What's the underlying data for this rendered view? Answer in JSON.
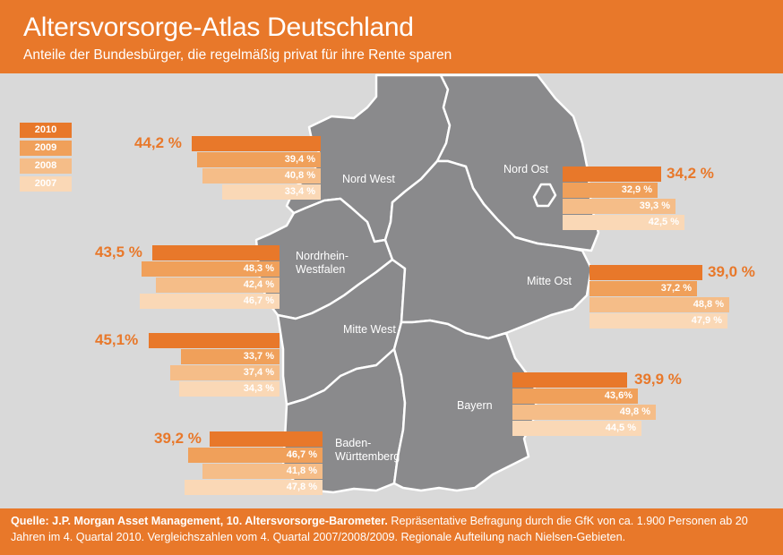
{
  "header": {
    "title": "Altersvorsorge-Atlas Deutschland",
    "subtitle": "Anteile der Bundesbürger, die regelmäßig privat für ihre Rente sparen"
  },
  "legend": [
    "2010",
    "2009",
    "2008",
    "2007"
  ],
  "colors": {
    "y2010": "#e8782a",
    "y2009": "#f0a05a",
    "y2008": "#f5bd88",
    "y2007": "#fad8b6",
    "map": "#8a8a8c",
    "border": "#ffffff",
    "background": "#d9d9d9"
  },
  "regions": [
    {
      "name": "Nord West",
      "values": {
        "2010": "44,2 %",
        "2009": "39,4 %",
        "2008": "40,8 %",
        "2007": "33,4 %"
      }
    },
    {
      "name": "Nordrhein-\nWestfalen",
      "values": {
        "2010": "43,5 %",
        "2009": "48,3 %",
        "2008": "42,4 %",
        "2007": "46,7 %"
      }
    },
    {
      "name": "Mitte West",
      "values": {
        "2010": "45,1%",
        "2009": "33,7 %",
        "2008": "37,4 %",
        "2007": "34,3 %"
      }
    },
    {
      "name": "Baden-\nWürttemberg",
      "values": {
        "2010": "39,2 %",
        "2009": "46,7 %",
        "2008": "41,8 %",
        "2007": "47,8 %"
      }
    },
    {
      "name": "Nord Ost",
      "values": {
        "2010": "34,2 %",
        "2009": "32,9 %",
        "2008": "39,3 %",
        "2007": "42,5 %"
      }
    },
    {
      "name": "Mitte Ost",
      "values": {
        "2010": "39,0 %",
        "2009": "37,2 %",
        "2008": "48,8 %",
        "2007": "47,9 %"
      }
    },
    {
      "name": "Bayern",
      "values": {
        "2010": "39,9 %",
        "2009": "43,6%",
        "2008": "49,8 %",
        "2007": "44,5 %"
      }
    }
  ],
  "footer": {
    "source_bold": "Quelle: J.P. Morgan Asset Management, 10. Altersvorsorge-Barometer.",
    "source_text": " Repräsentative Befragung durch die GfK von ca. 1.900 Personen ab 20 Jahren im 4. Quartal 2010. Vergleichszahlen vom 4. Quartal 2007/2008/2009. Regionale Aufteilung nach Nielsen-Gebieten."
  }
}
